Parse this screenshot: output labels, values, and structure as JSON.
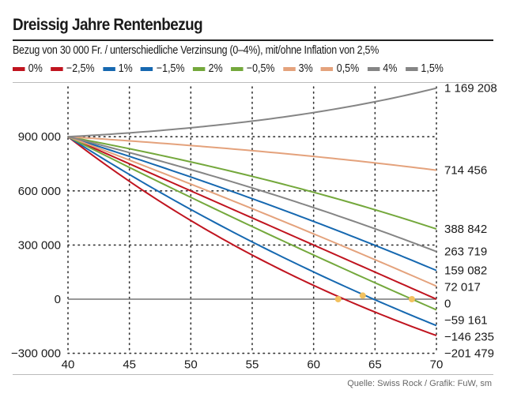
{
  "chart_data": {
    "type": "line",
    "title": "Dreissig Jahre Rentenbezug",
    "subtitle": "Bezug von 30 000 Fr. / unterschiedliche Verzinsung (0–4%), mit/ohne Inflation von 2,5%",
    "xlabel": "",
    "ylabel": "",
    "xlim": [
      40,
      70
    ],
    "ylim": [
      -300000,
      1200000
    ],
    "x_ticks": [
      "40",
      "45",
      "50",
      "55",
      "60",
      "65",
      "70"
    ],
    "x_tick_values": [
      40,
      45,
      50,
      55,
      60,
      65,
      70
    ],
    "y_ticks": [
      "900 000",
      "600 000",
      "300 000",
      "0",
      "−300 000"
    ],
    "y_tick_values": [
      900000,
      600000,
      300000,
      0,
      -300000
    ],
    "grid": true,
    "legend_position": "top",
    "start_value": 900000,
    "annual_withdrawal": 30000,
    "series": [
      {
        "name": "0%",
        "rate": 0.0,
        "color": "#c0141f",
        "end_value": 0,
        "end_label": "0"
      },
      {
        "name": "−2,5%",
        "rate": -0.025,
        "color": "#c0141f",
        "end_value": -201479,
        "end_label": "−201 479"
      },
      {
        "name": "1%",
        "rate": 0.01,
        "color": "#1668b0",
        "end_value": 159082,
        "end_label": "159 082"
      },
      {
        "name": "−1,5%",
        "rate": -0.015,
        "color": "#1668b0",
        "end_value": -146235,
        "end_label": "−146 235"
      },
      {
        "name": "2%",
        "rate": 0.02,
        "color": "#74a83c",
        "end_value": 388842,
        "end_label": "388 842"
      },
      {
        "name": "−0,5%",
        "rate": -0.005,
        "color": "#74a83c",
        "end_value": -59161,
        "end_label": "−59 161"
      },
      {
        "name": "3%",
        "rate": 0.03,
        "color": "#e4a27c",
        "end_value": 714456,
        "end_label": "714 456"
      },
      {
        "name": "0,5%",
        "rate": 0.005,
        "color": "#e4a27c",
        "end_value": 72017,
        "end_label": "72 017"
      },
      {
        "name": "4%",
        "rate": 0.04,
        "color": "#858585",
        "end_value": 1169208,
        "end_label": "1 169 208"
      },
      {
        "name": "1,5%",
        "rate": 0.015,
        "color": "#858585",
        "end_value": 263719,
        "end_label": "263 719"
      }
    ],
    "annotations": {
      "depletion_markers": [
        {
          "series": "−2,5%",
          "age": 62,
          "value": 0
        },
        {
          "series": "−1,5%",
          "age": 64,
          "value": 20000
        },
        {
          "series": "−0,5%",
          "age": 68,
          "value": 0
        }
      ],
      "marker_color": "#f2c15f"
    }
  },
  "source": "Quelle: Swiss Rock / Grafik: FuW, sm"
}
